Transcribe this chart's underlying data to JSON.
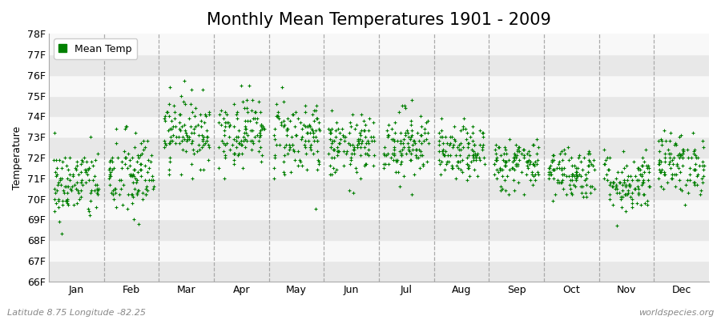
{
  "title": "Monthly Mean Temperatures 1901 - 2009",
  "ylabel": "Temperature",
  "xlabel_bottom_left": "Latitude 8.75 Longitude -82.25",
  "xlabel_bottom_right": "worldspecies.org",
  "legend_label": "Mean Temp",
  "dot_color": "#008000",
  "background_color": "#f0f0f0",
  "band_light": "#f8f8f8",
  "band_dark": "#e8e8e8",
  "ylim": [
    66,
    78
  ],
  "yticks": [
    66,
    67,
    68,
    69,
    70,
    71,
    72,
    73,
    74,
    75,
    76,
    77,
    78
  ],
  "ytick_labels": [
    "66F",
    "67F",
    "68F",
    "69F",
    "70F",
    "71F",
    "72F",
    "73F",
    "74F",
    "75F",
    "76F",
    "77F",
    "78F"
  ],
  "months": [
    "Jan",
    "Feb",
    "Mar",
    "Apr",
    "May",
    "Jun",
    "Jul",
    "Aug",
    "Sep",
    "Oct",
    "Nov",
    "Dec"
  ],
  "month_means": [
    70.7,
    71.1,
    73.3,
    73.3,
    73.0,
    72.5,
    72.7,
    72.2,
    71.7,
    71.3,
    70.8,
    71.7
  ],
  "month_stds": [
    0.9,
    1.1,
    0.85,
    0.85,
    1.0,
    0.75,
    0.85,
    0.65,
    0.65,
    0.65,
    0.75,
    0.75
  ],
  "n_years": 109,
  "seed": 42,
  "figsize": [
    9.0,
    4.0
  ],
  "dpi": 100,
  "title_fontsize": 15,
  "axis_fontsize": 9,
  "legend_fontsize": 9,
  "tick_fontsize": 9
}
